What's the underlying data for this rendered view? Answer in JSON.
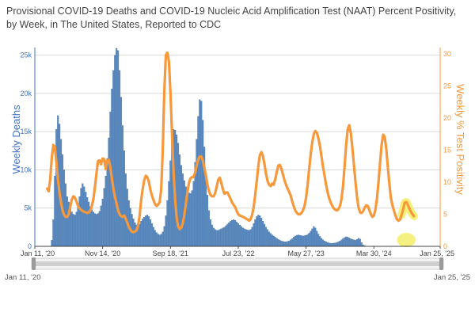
{
  "chart_data": {
    "type": "bar+line",
    "title": "Provisional COVID-19 Deaths and COVID-19 Nucleic Acid Amplification Test (NAAT) Percent Positivity, by Week, in The United States, Reported to CDC",
    "ylabel_left": "Weekly Deaths",
    "ylabel_right": "Weekly % Test Positivity",
    "x_range": [
      "2020-01-11",
      "2025-01-25"
    ],
    "x_ticks": [
      "Jan 11, '20",
      "Nov 14, '20",
      "Sep 18, '21",
      "Jul 23, '22",
      "May 27, '23",
      "Mar 30, '24",
      "Jan 25, '25"
    ],
    "x_tick_dates": [
      "2020-01-11",
      "2020-11-14",
      "2021-09-18",
      "2022-07-23",
      "2023-05-27",
      "2024-03-30",
      "2025-01-25"
    ],
    "y_left_ticks": [
      "0",
      "5k",
      "10k",
      "15k",
      "20k",
      "25k"
    ],
    "y_left_tick_values": [
      0,
      5000,
      10000,
      15000,
      20000,
      25000
    ],
    "y_left_range": [
      0,
      26000
    ],
    "y_right_ticks": [
      "0",
      "5",
      "10",
      "15",
      "20",
      "25",
      "30"
    ],
    "y_right_tick_values": [
      0,
      5,
      10,
      15,
      20,
      25,
      30
    ],
    "y_right_range": [
      0,
      31
    ],
    "grid": true,
    "colors": {
      "bars": "#5b8bc0",
      "bar_edge": "#3f6fa6",
      "line": "#f7983a",
      "highlight": "#f3ee6a",
      "grid": "#d9d9d9",
      "left_axis_text": "#4472c4",
      "right_axis_text": "#f7983a",
      "range_slider": "#cfcfcf"
    },
    "deaths_series": {
      "name": "Weekly Deaths",
      "start_date": "2020-01-11",
      "interval": "week",
      "values": [
        0,
        0,
        0,
        0,
        0,
        0,
        0,
        0,
        0,
        0,
        0,
        800,
        3500,
        9200,
        15300,
        17100,
        16000,
        14000,
        12000,
        10000,
        8200,
        6500,
        5800,
        5100,
        4500,
        4200,
        4100,
        4500,
        5600,
        6500,
        7600,
        8200,
        7800,
        7100,
        6400,
        5800,
        5200,
        4800,
        4500,
        4300,
        4200,
        4300,
        4600,
        5300,
        6200,
        7600,
        9200,
        11500,
        14200,
        17600,
        20600,
        23000,
        25000,
        25900,
        25600,
        23000,
        19500,
        15800,
        12500,
        9500,
        7500,
        6000,
        5000,
        4200,
        3600,
        3100,
        2800,
        2700,
        2900,
        3300,
        3600,
        3800,
        4000,
        4100,
        3900,
        3500,
        3000,
        2500,
        2100,
        1800,
        1600,
        1500,
        1600,
        1900,
        2600,
        4000,
        6000,
        8500,
        11200,
        13800,
        15300,
        15200,
        14600,
        13500,
        12000,
        10600,
        9500,
        8600,
        7800,
        7300,
        7000,
        6900,
        7300,
        8500,
        11000,
        14000,
        17000,
        19200,
        19000,
        16500,
        13000,
        9500,
        6700,
        4700,
        3500,
        2800,
        2400,
        2200,
        2100,
        2100,
        2200,
        2300,
        2400,
        2500,
        2700,
        2900,
        3100,
        3300,
        3400,
        3500,
        3400,
        3200,
        3000,
        2800,
        2600,
        2400,
        2300,
        2200,
        2150,
        2100,
        2200,
        2500,
        3000,
        3500,
        3900,
        4100,
        4000,
        3700,
        3300,
        2900,
        2500,
        2200,
        1900,
        1700,
        1500,
        1350,
        1200,
        1050,
        900,
        800,
        700,
        650,
        600,
        600,
        650,
        700,
        850,
        1000,
        1200,
        1350,
        1450,
        1500,
        1450,
        1400,
        1350,
        1400,
        1450,
        1550,
        1750,
        2000,
        2300,
        2600,
        2400,
        2000,
        1600,
        1300,
        1050,
        850,
        700,
        600,
        500,
        450,
        400,
        400,
        420,
        450,
        500,
        600,
        700,
        850,
        1000,
        1150,
        1250,
        1200,
        1100,
        1000,
        900,
        850,
        800,
        900,
        1050,
        950,
        500,
        200,
        80
      ]
    },
    "positivity_series": {
      "name": "Weekly % Test Positivity",
      "points": [
        [
          "2020-03-07",
          9.0
        ],
        [
          "2020-03-14",
          8.6
        ],
        [
          "2020-03-21",
          10.5
        ],
        [
          "2020-03-28",
          13.8
        ],
        [
          "2020-04-04",
          15.8
        ],
        [
          "2020-04-11",
          15.5
        ],
        [
          "2020-04-18",
          13.0
        ],
        [
          "2020-04-25",
          10.4
        ],
        [
          "2020-05-02",
          8.4
        ],
        [
          "2020-05-09",
          6.8
        ],
        [
          "2020-05-16",
          5.6
        ],
        [
          "2020-05-23",
          4.9
        ],
        [
          "2020-05-30",
          4.6
        ],
        [
          "2020-06-06",
          4.6
        ],
        [
          "2020-06-13",
          5.0
        ],
        [
          "2020-06-20",
          6.2
        ],
        [
          "2020-06-27",
          7.3
        ],
        [
          "2020-07-04",
          7.8
        ],
        [
          "2020-07-11",
          7.6
        ],
        [
          "2020-07-18",
          7.0
        ],
        [
          "2020-07-25",
          6.3
        ],
        [
          "2020-08-01",
          5.9
        ],
        [
          "2020-08-08",
          5.7
        ],
        [
          "2020-08-15",
          5.5
        ],
        [
          "2020-08-22",
          5.4
        ],
        [
          "2020-08-29",
          5.3
        ],
        [
          "2020-09-05",
          5.2
        ],
        [
          "2020-09-12",
          5.3
        ],
        [
          "2020-09-19",
          5.6
        ],
        [
          "2020-09-26",
          6.3
        ],
        [
          "2020-10-03",
          7.4
        ],
        [
          "2020-10-10",
          9.2
        ],
        [
          "2020-10-17",
          11.4
        ],
        [
          "2020-10-24",
          13.3
        ],
        [
          "2020-10-31",
          13.4
        ],
        [
          "2020-11-07",
          12.8
        ],
        [
          "2020-11-14",
          13.7
        ],
        [
          "2020-11-21",
          13.6
        ],
        [
          "2020-11-28",
          12.0
        ],
        [
          "2020-12-05",
          13.4
        ],
        [
          "2020-12-12",
          13.5
        ],
        [
          "2020-12-19",
          12.3
        ],
        [
          "2020-12-26",
          10.6
        ],
        [
          "2021-01-02",
          8.9
        ],
        [
          "2021-01-09",
          7.7
        ],
        [
          "2021-01-16",
          6.7
        ],
        [
          "2021-01-23",
          5.6
        ],
        [
          "2021-01-30",
          5.0
        ],
        [
          "2021-02-06",
          4.7
        ],
        [
          "2021-02-13",
          4.6
        ],
        [
          "2021-02-20",
          4.8
        ],
        [
          "2021-02-27",
          4.3
        ],
        [
          "2021-03-06",
          3.7
        ],
        [
          "2021-03-13",
          3.0
        ],
        [
          "2021-03-20",
          2.6
        ],
        [
          "2021-03-27",
          2.3
        ],
        [
          "2021-04-03",
          2.2
        ],
        [
          "2021-04-10",
          2.3
        ],
        [
          "2021-04-17",
          2.5
        ],
        [
          "2021-04-24",
          3.2
        ],
        [
          "2021-05-01",
          4.8
        ],
        [
          "2021-05-08",
          7.2
        ],
        [
          "2021-05-15",
          9.0
        ],
        [
          "2021-05-22",
          10.3
        ],
        [
          "2021-05-29",
          11.0
        ],
        [
          "2021-06-05",
          10.8
        ],
        [
          "2021-06-12",
          10.0
        ],
        [
          "2021-06-19",
          8.8
        ],
        [
          "2021-06-26",
          7.9
        ],
        [
          "2021-07-03",
          7.2
        ],
        [
          "2021-07-10",
          6.6
        ],
        [
          "2021-07-17",
          6.3
        ],
        [
          "2021-07-24",
          6.5
        ],
        [
          "2021-07-31",
          6.9
        ],
        [
          "2021-08-07",
          8.8
        ],
        [
          "2021-08-14",
          15.0
        ],
        [
          "2021-08-21",
          24.0
        ],
        [
          "2021-08-28",
          29.8
        ],
        [
          "2021-09-04",
          30.2
        ],
        [
          "2021-09-11",
          28.8
        ],
        [
          "2021-09-18",
          24.0
        ],
        [
          "2021-09-25",
          17.5
        ],
        [
          "2021-10-02",
          11.7
        ],
        [
          "2021-10-09",
          7.3
        ],
        [
          "2021-10-16",
          4.5
        ],
        [
          "2021-10-23",
          3.1
        ],
        [
          "2021-10-30",
          2.7
        ],
        [
          "2021-11-06",
          2.9
        ],
        [
          "2021-11-13",
          3.6
        ],
        [
          "2021-11-20",
          4.9
        ],
        [
          "2021-11-27",
          6.6
        ],
        [
          "2021-12-04",
          8.4
        ],
        [
          "2021-12-11",
          9.9
        ],
        [
          "2021-12-18",
          10.6
        ],
        [
          "2021-12-25",
          10.8
        ],
        [
          "2022-01-01",
          10.8
        ],
        [
          "2022-01-08",
          11.5
        ],
        [
          "2022-01-15",
          12.6
        ],
        [
          "2022-01-22",
          13.5
        ],
        [
          "2022-01-29",
          14.0
        ],
        [
          "2022-02-05",
          14.0
        ],
        [
          "2022-02-12",
          13.4
        ],
        [
          "2022-02-19",
          12.3
        ],
        [
          "2022-02-26",
          11.0
        ],
        [
          "2022-03-05",
          9.6
        ],
        [
          "2022-03-12",
          8.6
        ],
        [
          "2022-03-19",
          8.0
        ],
        [
          "2022-03-26",
          7.8
        ],
        [
          "2022-04-02",
          7.8
        ],
        [
          "2022-04-09",
          8.3
        ],
        [
          "2022-04-16",
          9.3
        ],
        [
          "2022-04-23",
          10.4
        ],
        [
          "2022-04-30",
          10.7
        ],
        [
          "2022-05-07",
          9.9
        ],
        [
          "2022-05-14",
          8.9
        ],
        [
          "2022-05-21",
          8.2
        ],
        [
          "2022-05-28",
          8.4
        ],
        [
          "2022-06-04",
          8.4
        ],
        [
          "2022-06-11",
          7.9
        ],
        [
          "2022-06-18",
          7.4
        ],
        [
          "2022-06-25",
          6.8
        ],
        [
          "2022-07-02",
          6.5
        ],
        [
          "2022-07-09",
          6.1
        ],
        [
          "2022-07-16",
          5.5
        ],
        [
          "2022-07-23",
          5.0
        ],
        [
          "2022-07-30",
          4.8
        ],
        [
          "2022-08-06",
          4.7
        ],
        [
          "2022-08-13",
          4.6
        ],
        [
          "2022-08-20",
          4.5
        ],
        [
          "2022-08-27",
          4.3
        ],
        [
          "2022-09-03",
          4.2
        ],
        [
          "2022-09-10",
          4.0
        ],
        [
          "2022-09-17",
          4.2
        ],
        [
          "2022-09-24",
          4.9
        ],
        [
          "2022-10-01",
          6.1
        ],
        [
          "2022-10-08",
          8.0
        ],
        [
          "2022-10-15",
          10.2
        ],
        [
          "2022-10-22",
          12.5
        ],
        [
          "2022-10-29",
          14.2
        ],
        [
          "2022-11-05",
          14.7
        ],
        [
          "2022-11-12",
          14.1
        ],
        [
          "2022-11-19",
          12.8
        ],
        [
          "2022-11-26",
          11.3
        ],
        [
          "2022-12-03",
          10.2
        ],
        [
          "2022-12-10",
          9.6
        ],
        [
          "2022-12-17",
          9.4
        ],
        [
          "2022-12-24",
          9.8
        ],
        [
          "2022-12-31",
          9.6
        ],
        [
          "2023-01-07",
          10.5
        ],
        [
          "2023-01-14",
          11.6
        ],
        [
          "2023-01-21",
          12.6
        ],
        [
          "2023-01-28",
          12.7
        ],
        [
          "2023-02-04",
          12.1
        ],
        [
          "2023-02-11",
          11.2
        ],
        [
          "2023-02-18",
          10.3
        ],
        [
          "2023-02-25",
          9.6
        ],
        [
          "2023-03-04",
          9.0
        ],
        [
          "2023-03-11",
          8.5
        ],
        [
          "2023-03-18",
          7.9
        ],
        [
          "2023-03-25",
          7.0
        ],
        [
          "2023-04-01",
          6.2
        ],
        [
          "2023-04-08",
          5.6
        ],
        [
          "2023-04-15",
          5.2
        ],
        [
          "2023-04-22",
          5.0
        ],
        [
          "2023-04-29",
          5.0
        ],
        [
          "2023-05-06",
          5.2
        ],
        [
          "2023-05-13",
          5.6
        ],
        [
          "2023-05-20",
          6.3
        ],
        [
          "2023-05-27",
          7.6
        ],
        [
          "2023-06-03",
          9.6
        ],
        [
          "2023-06-10",
          12.0
        ],
        [
          "2023-06-17",
          14.4
        ],
        [
          "2023-06-24",
          16.2
        ],
        [
          "2023-07-01",
          17.5
        ],
        [
          "2023-07-08",
          18.0
        ],
        [
          "2023-07-15",
          17.7
        ],
        [
          "2023-07-22",
          16.8
        ],
        [
          "2023-07-29",
          15.6
        ],
        [
          "2023-08-05",
          14.0
        ],
        [
          "2023-08-12",
          12.4
        ],
        [
          "2023-08-19",
          11.0
        ],
        [
          "2023-08-26",
          9.6
        ],
        [
          "2023-09-02",
          8.4
        ],
        [
          "2023-09-09",
          7.5
        ],
        [
          "2023-09-16",
          6.8
        ],
        [
          "2023-09-23",
          6.3
        ],
        [
          "2023-09-30",
          5.9
        ],
        [
          "2023-10-07",
          5.7
        ],
        [
          "2023-10-14",
          5.6
        ],
        [
          "2023-10-21",
          5.8
        ],
        [
          "2023-10-28",
          6.3
        ],
        [
          "2023-11-04",
          7.4
        ],
        [
          "2023-11-11",
          9.5
        ],
        [
          "2023-11-18",
          12.5
        ],
        [
          "2023-11-25",
          15.8
        ],
        [
          "2023-12-02",
          18.2
        ],
        [
          "2023-12-09",
          18.9
        ],
        [
          "2023-12-16",
          17.7
        ],
        [
          "2023-12-23",
          15.5
        ],
        [
          "2023-12-30",
          12.8
        ],
        [
          "2024-01-06",
          10.2
        ],
        [
          "2024-01-13",
          7.8
        ],
        [
          "2024-01-20",
          6.1
        ],
        [
          "2024-01-27",
          5.3
        ],
        [
          "2024-02-03",
          5.2
        ],
        [
          "2024-02-10",
          5.5
        ],
        [
          "2024-02-17",
          6.0
        ],
        [
          "2024-02-24",
          6.4
        ],
        [
          "2024-03-02",
          6.3
        ],
        [
          "2024-03-09",
          5.7
        ],
        [
          "2024-03-16",
          5.0
        ],
        [
          "2024-03-23",
          4.6
        ],
        [
          "2024-03-30",
          4.8
        ],
        [
          "2024-04-06",
          5.7
        ],
        [
          "2024-04-13",
          7.5
        ],
        [
          "2024-04-20",
          10.0
        ],
        [
          "2024-04-27",
          13.0
        ],
        [
          "2024-05-04",
          15.8
        ],
        [
          "2024-05-11",
          17.4
        ],
        [
          "2024-05-18",
          17.1
        ],
        [
          "2024-05-25",
          15.2
        ],
        [
          "2024-06-01",
          12.5
        ],
        [
          "2024-06-08",
          9.8
        ],
        [
          "2024-06-15",
          7.6
        ],
        [
          "2024-06-22",
          6.4
        ],
        [
          "2024-06-29",
          5.6
        ],
        [
          "2024-07-06",
          4.8
        ],
        [
          "2024-07-13",
          4.2
        ],
        [
          "2024-07-20",
          4.0
        ],
        [
          "2024-07-27",
          4.2
        ],
        [
          "2024-08-03",
          4.9
        ],
        [
          "2024-08-10",
          5.8
        ],
        [
          "2024-08-17",
          6.8
        ],
        [
          "2024-08-24",
          6.9
        ],
        [
          "2024-08-31",
          6.5
        ],
        [
          "2024-09-07",
          5.9
        ],
        [
          "2024-09-14",
          5.4
        ],
        [
          "2024-09-21",
          5.0
        ],
        [
          "2024-09-28",
          4.7
        ]
      ]
    },
    "highlights": [
      {
        "series": "positivity",
        "from": "2024-08-03",
        "to": "2024-09-28"
      },
      {
        "series": "deaths",
        "from": "2024-07-13",
        "to": "2024-10-05"
      }
    ],
    "range_slider": {
      "start_label": "Jan 11, '20",
      "end_label": "Jan 25, '25"
    }
  }
}
